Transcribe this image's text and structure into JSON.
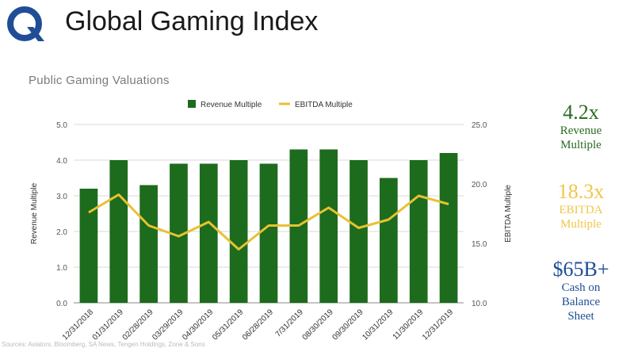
{
  "header": {
    "title": "Global Gaming Index"
  },
  "colors": {
    "revenue": "#1d6b1d",
    "ebitda": "#e8c132",
    "brand": "#1f4e96",
    "stat_revenue": "#2a6b24",
    "stat_ebitda": "#f0c64a",
    "stat_cash": "#1f4e96"
  },
  "chart_data": {
    "type": "bar",
    "title": "Public Gaming Valuations",
    "categories": [
      "12/31/2018",
      "01/31/2019",
      "02/28/2019",
      "03/29/2019",
      "04/30/2019",
      "05/31/2019",
      "06/28/2019",
      "7/31/2019",
      "08/30/2019",
      "09/30/2019",
      "10/31/2019",
      "11/30/2019",
      "12/31/2019"
    ],
    "series": [
      {
        "name": "Revenue Multiple",
        "type": "bar",
        "axis": "left",
        "color": "#1d6b1d",
        "values": [
          3.2,
          4.0,
          3.3,
          3.9,
          3.9,
          4.0,
          3.9,
          4.3,
          4.3,
          4.0,
          3.5,
          4.0,
          4.2
        ]
      },
      {
        "name": "EBITDA Multiple",
        "type": "line",
        "axis": "right",
        "color": "#e8c132",
        "values": [
          17.6,
          19.1,
          16.5,
          15.6,
          16.8,
          14.5,
          16.5,
          16.5,
          18.0,
          16.3,
          17.0,
          19.0,
          18.3
        ]
      }
    ],
    "ylabel": "Revenue Multiple",
    "ylim": [
      0,
      5
    ],
    "yticks": [
      "0.0",
      "1.0",
      "2.0",
      "3.0",
      "4.0",
      "5.0"
    ],
    "y2label": "EBITDA Multiple",
    "y2lim": [
      10,
      25
    ],
    "y2ticks": [
      "10.0",
      "15.0",
      "20.0",
      "25.0"
    ],
    "grid": true,
    "legend": "top-center"
  },
  "stats": {
    "revenue": {
      "value": "4.2x",
      "line1": "Revenue",
      "line2": "Multiple"
    },
    "ebitda": {
      "value": "18.3x",
      "line1": "EBITDA",
      "line2": "Multiple"
    },
    "cash": {
      "value": "$65B+",
      "line1": "Cash on",
      "line2": "Balance",
      "line3": "Sheet"
    }
  },
  "footer": {
    "source": "Sources: Aviators, Bloomberg, SA News, Tengen Holdings, Zone & Sons"
  }
}
